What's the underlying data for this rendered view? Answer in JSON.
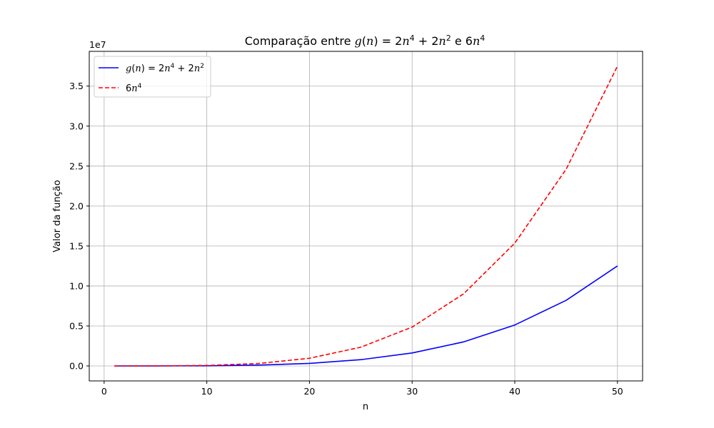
{
  "chart_data": {
    "type": "line",
    "title_parts": {
      "prefix": "Comparação entre ",
      "g": "g",
      "n": "n",
      "eq": "= 2",
      "plus": " + 2",
      "e": " e 6"
    },
    "xlabel": "n",
    "ylabel": "Valor da função",
    "y_offset_text": "1e7",
    "xlim": [
      -1.45,
      52.45
    ],
    "ylim": [
      -1873751.0,
      39348751.0
    ],
    "x_ticks": [
      0,
      10,
      20,
      30,
      40,
      50
    ],
    "x_tick_labels": [
      "0",
      "10",
      "20",
      "30",
      "40",
      "50"
    ],
    "y_ticks": [
      0,
      5000000,
      10000000,
      15000000,
      20000000,
      25000000,
      30000000,
      35000000
    ],
    "y_tick_labels": [
      "0.0",
      "0.5",
      "1.0",
      "1.5",
      "2.0",
      "2.5",
      "3.0",
      "3.5"
    ],
    "grid": true,
    "legend_position": "top-left",
    "x": [
      1,
      5,
      10,
      15,
      20,
      25,
      30,
      35,
      40,
      45,
      50
    ],
    "series": [
      {
        "name": "g(n) = 2n⁴ + 2n²",
        "color": "#0000ff",
        "style": "solid",
        "values": [
          4,
          1300,
          20200,
          101700,
          320800,
          782500,
          1621800,
          3003700,
          5123200,
          8205300,
          12505000
        ]
      },
      {
        "name": "6n⁴",
        "color": "#ff0000",
        "style": "dashed",
        "values": [
          6,
          3750,
          60000,
          303750,
          960000,
          2343750,
          4860000,
          9003750,
          15360000,
          24603750,
          37500000
        ]
      }
    ]
  }
}
